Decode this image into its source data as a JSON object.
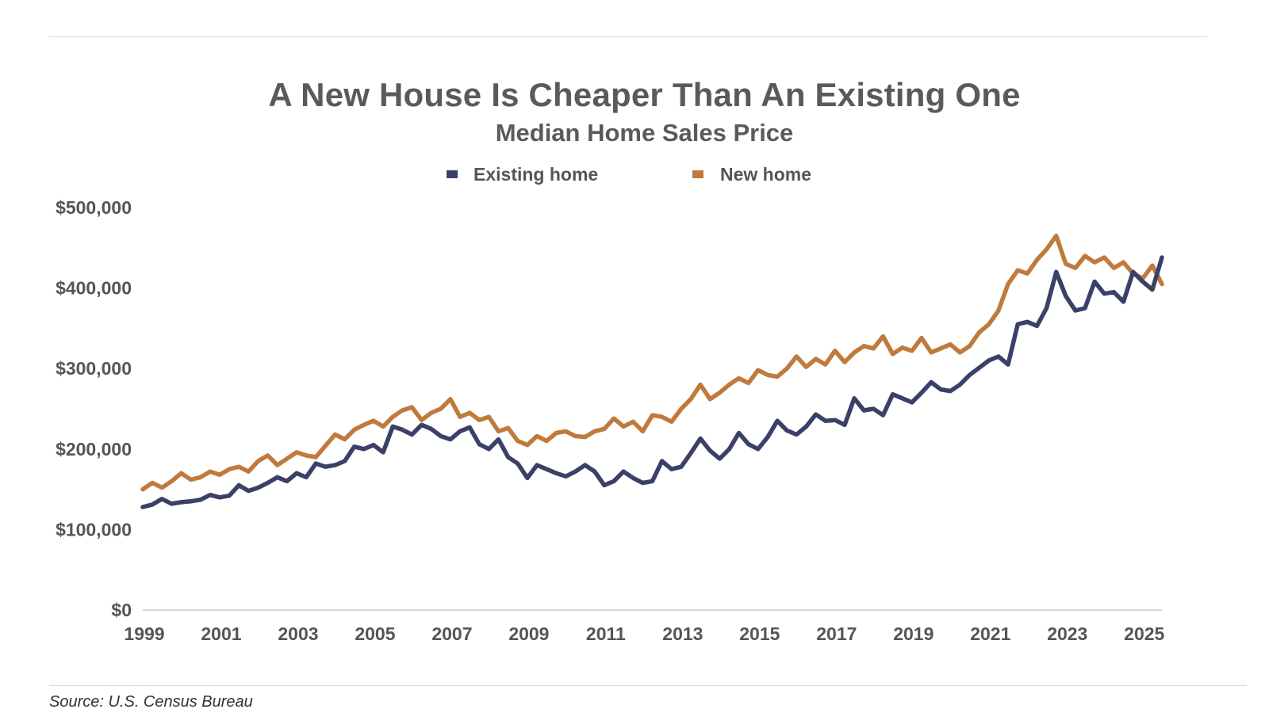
{
  "header": {
    "title": "A New House Is Cheaper Than An Existing One",
    "subtitle": "Median Home Sales Price"
  },
  "footer": {
    "source": "Source: U.S. Census Bureau"
  },
  "colors": {
    "existing": "#3b4069",
    "new": "#c07a3c",
    "axis": "#cccccc",
    "text": "#555555"
  },
  "chart_data": {
    "type": "line",
    "title": "A New House Is Cheaper Than An Existing One",
    "subtitle": "Median Home Sales Price",
    "xlabel": "",
    "ylabel": "",
    "ylim": [
      0,
      500000
    ],
    "xlim": [
      1999,
      2025.5
    ],
    "y_ticks": [
      0,
      100000,
      200000,
      300000,
      400000,
      500000
    ],
    "y_tick_labels": [
      "$0",
      "$100,000",
      "$200,000",
      "$300,000",
      "$400,000",
      "$500,000"
    ],
    "x_ticks": [
      1999,
      2001,
      2003,
      2005,
      2007,
      2009,
      2011,
      2013,
      2015,
      2017,
      2019,
      2021,
      2023,
      2025
    ],
    "x_tick_labels": [
      "1999",
      "2001",
      "2003",
      "2005",
      "2007",
      "2009",
      "2011",
      "2013",
      "2015",
      "2017",
      "2019",
      "2021",
      "2023",
      "2025"
    ],
    "grid": false,
    "legend_position": "top-center",
    "series": [
      {
        "name": "Existing home",
        "color": "#3b4069",
        "x": [
          1999.0,
          1999.25,
          1999.5,
          1999.75,
          2000.0,
          2000.25,
          2000.5,
          2000.75,
          2001.0,
          2001.25,
          2001.5,
          2001.75,
          2002.0,
          2002.25,
          2002.5,
          2002.75,
          2003.0,
          2003.25,
          2003.5,
          2003.75,
          2004.0,
          2004.25,
          2004.5,
          2004.75,
          2005.0,
          2005.25,
          2005.5,
          2005.75,
          2006.0,
          2006.25,
          2006.5,
          2006.75,
          2007.0,
          2007.25,
          2007.5,
          2007.75,
          2008.0,
          2008.25,
          2008.5,
          2008.75,
          2009.0,
          2009.25,
          2009.5,
          2009.75,
          2010.0,
          2010.25,
          2010.5,
          2010.75,
          2011.0,
          2011.25,
          2011.5,
          2011.75,
          2012.0,
          2012.25,
          2012.5,
          2012.75,
          2013.0,
          2013.25,
          2013.5,
          2013.75,
          2014.0,
          2014.25,
          2014.5,
          2014.75,
          2015.0,
          2015.25,
          2015.5,
          2015.75,
          2016.0,
          2016.25,
          2016.5,
          2016.75,
          2017.0,
          2017.25,
          2017.5,
          2017.75,
          2018.0,
          2018.25,
          2018.5,
          2018.75,
          2019.0,
          2019.25,
          2019.5,
          2019.75,
          2020.0,
          2020.25,
          2020.5,
          2020.75,
          2021.0,
          2021.25,
          2021.5,
          2021.75,
          2022.0,
          2022.25,
          2022.5,
          2022.75,
          2023.0,
          2023.25,
          2023.5,
          2023.75,
          2024.0,
          2024.25,
          2024.5,
          2024.75,
          2025.0,
          2025.25,
          2025.5
        ],
        "values": [
          128000,
          131000,
          138000,
          132000,
          134000,
          135000,
          137000,
          143000,
          140000,
          142000,
          155000,
          148000,
          152000,
          158000,
          165000,
          160000,
          170000,
          165000,
          182000,
          178000,
          180000,
          185000,
          203000,
          200000,
          205000,
          196000,
          228000,
          224000,
          218000,
          230000,
          225000,
          216000,
          212000,
          222000,
          227000,
          206000,
          200000,
          212000,
          190000,
          182000,
          164000,
          180000,
          175000,
          170000,
          166000,
          172000,
          180000,
          172000,
          155000,
          160000,
          172000,
          164000,
          158000,
          160000,
          185000,
          175000,
          178000,
          195000,
          213000,
          198000,
          188000,
          200000,
          220000,
          206000,
          200000,
          215000,
          235000,
          223000,
          218000,
          228000,
          243000,
          235000,
          236000,
          230000,
          263000,
          248000,
          250000,
          242000,
          268000,
          263000,
          258000,
          270000,
          283000,
          274000,
          272000,
          280000,
          292000,
          301000,
          310000,
          315000,
          305000,
          355000,
          358000,
          353000,
          375000,
          420000,
          390000,
          372000,
          375000,
          408000,
          393000,
          395000,
          383000,
          420000,
          408000,
          398000,
          438000
        ]
      },
      {
        "name": "New home",
        "color": "#c07a3c",
        "x": [
          1999.0,
          1999.25,
          1999.5,
          1999.75,
          2000.0,
          2000.25,
          2000.5,
          2000.75,
          2001.0,
          2001.25,
          2001.5,
          2001.75,
          2002.0,
          2002.25,
          2002.5,
          2002.75,
          2003.0,
          2003.25,
          2003.5,
          2003.75,
          2004.0,
          2004.25,
          2004.5,
          2004.75,
          2005.0,
          2005.25,
          2005.5,
          2005.75,
          2006.0,
          2006.25,
          2006.5,
          2006.75,
          2007.0,
          2007.25,
          2007.5,
          2007.75,
          2008.0,
          2008.25,
          2008.5,
          2008.75,
          2009.0,
          2009.25,
          2009.5,
          2009.75,
          2010.0,
          2010.25,
          2010.5,
          2010.75,
          2011.0,
          2011.25,
          2011.5,
          2011.75,
          2012.0,
          2012.25,
          2012.5,
          2012.75,
          2013.0,
          2013.25,
          2013.5,
          2013.75,
          2014.0,
          2014.25,
          2014.5,
          2014.75,
          2015.0,
          2015.25,
          2015.5,
          2015.75,
          2016.0,
          2016.25,
          2016.5,
          2016.75,
          2017.0,
          2017.25,
          2017.5,
          2017.75,
          2018.0,
          2018.25,
          2018.5,
          2018.75,
          2019.0,
          2019.25,
          2019.5,
          2019.75,
          2020.0,
          2020.25,
          2020.5,
          2020.75,
          2021.0,
          2021.25,
          2021.5,
          2021.75,
          2022.0,
          2022.25,
          2022.5,
          2022.75,
          2023.0,
          2023.25,
          2023.5,
          2023.75,
          2024.0,
          2024.25,
          2024.5,
          2024.75,
          2025.0,
          2025.25,
          2025.5
        ],
        "values": [
          150000,
          158000,
          152000,
          160000,
          170000,
          162000,
          165000,
          172000,
          168000,
          175000,
          178000,
          172000,
          185000,
          192000,
          180000,
          188000,
          196000,
          192000,
          190000,
          204000,
          218000,
          212000,
          224000,
          230000,
          235000,
          228000,
          240000,
          248000,
          252000,
          236000,
          245000,
          250000,
          262000,
          240000,
          245000,
          236000,
          240000,
          222000,
          226000,
          210000,
          205000,
          216000,
          210000,
          220000,
          222000,
          216000,
          215000,
          222000,
          225000,
          238000,
          228000,
          234000,
          222000,
          242000,
          240000,
          234000,
          250000,
          262000,
          280000,
          262000,
          270000,
          280000,
          288000,
          282000,
          298000,
          292000,
          290000,
          300000,
          315000,
          302000,
          312000,
          305000,
          322000,
          308000,
          320000,
          328000,
          325000,
          340000,
          318000,
          326000,
          322000,
          338000,
          320000,
          325000,
          330000,
          320000,
          328000,
          345000,
          355000,
          372000,
          405000,
          422000,
          418000,
          435000,
          448000,
          465000,
          430000,
          425000,
          440000,
          432000,
          438000,
          425000,
          432000,
          418000,
          412000,
          428000,
          405000
        ]
      }
    ]
  }
}
